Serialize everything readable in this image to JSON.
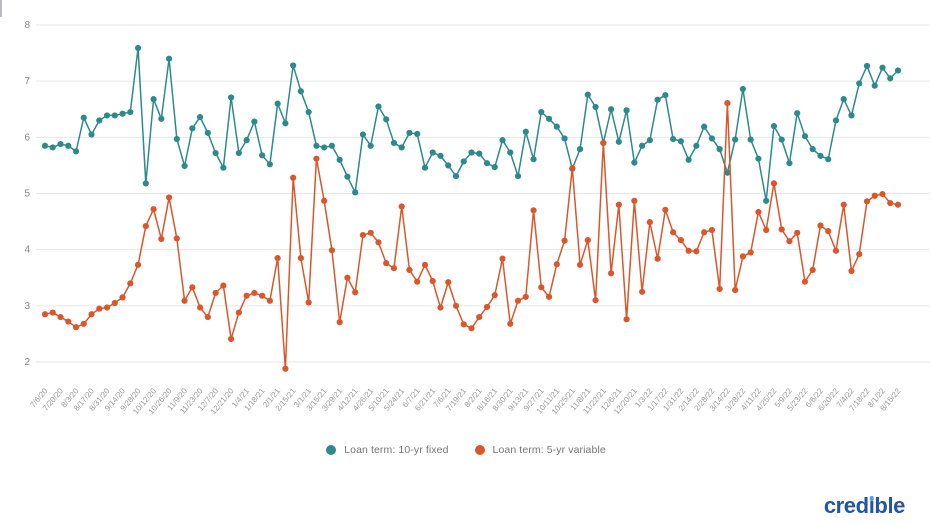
{
  "chart_data": {
    "type": "line",
    "title": "",
    "xlabel": "",
    "ylabel": "",
    "ylim": [
      2,
      8
    ],
    "y_ticks": [
      8,
      7,
      6,
      5,
      4,
      3,
      2
    ],
    "grid": true,
    "grid_color": "#e7e7e7",
    "axis_label_color": "#848484",
    "tick_label_color": "#999999",
    "legend_position": "bottom",
    "x_label_every": 2,
    "x_labels": [
      "7/6/20",
      "7/20/20",
      "8/3/20",
      "8/17/20",
      "8/31/20",
      "9/14/20",
      "9/28/20",
      "10/12/20",
      "10/26/20",
      "11/9/20",
      "11/23/20",
      "12/7/20",
      "12/21/20",
      "1/4/21",
      "1/18/21",
      "2/1/21",
      "2/15/21",
      "3/1/21",
      "3/15/21",
      "3/29/21",
      "4/12/21",
      "4/26/21",
      "5/10/21",
      "5/24/21",
      "6/7/21",
      "6/21/21",
      "7/6/21",
      "7/19/21",
      "8/2/21",
      "8/16/21",
      "8/30/21",
      "9/13/21",
      "9/27/21",
      "10/11/21",
      "10/25/21",
      "11/8/21",
      "11/22/21",
      "12/6/21",
      "12/20/21",
      "1/3/22",
      "1/17/22",
      "1/31/22",
      "2/14/22",
      "2/28/22",
      "3/14/22",
      "3/28/22",
      "4/11/22",
      "4/25/22",
      "5/9/22",
      "5/23/22",
      "6/6/22",
      "6/20/22",
      "7/4/22",
      "7/18/22",
      "8/1/22",
      "8/15/22"
    ],
    "series": [
      {
        "name": "Loan term: 10-yr fixed",
        "color": "#2d8a8c",
        "values": [
          5.85,
          5.82,
          5.88,
          5.85,
          5.75,
          6.35,
          6.05,
          6.3,
          6.39,
          6.39,
          6.42,
          6.45,
          7.59,
          5.18,
          6.68,
          6.33,
          7.4,
          5.97,
          5.49,
          6.16,
          6.36,
          6.08,
          5.72,
          5.46,
          6.71,
          5.72,
          5.95,
          6.28,
          5.68,
          5.52,
          6.6,
          6.25,
          7.28,
          6.82,
          6.45,
          5.85,
          5.82,
          5.85,
          5.6,
          5.3,
          5.02,
          6.05,
          5.85,
          6.55,
          6.32,
          5.9,
          5.82,
          6.08,
          6.06,
          5.46,
          5.73,
          5.67,
          5.5,
          5.31,
          5.57,
          5.73,
          5.71,
          5.54,
          5.47,
          5.95,
          5.73,
          5.31,
          6.1,
          5.61,
          6.45,
          6.33,
          6.19,
          5.98,
          5.44,
          5.79,
          6.76,
          6.54,
          5.9,
          6.5,
          5.92,
          6.48,
          5.55,
          5.85,
          5.95,
          6.67,
          6.75,
          5.97,
          5.93,
          5.6,
          5.85,
          6.19,
          5.98,
          5.79,
          5.37,
          5.96,
          6.86,
          5.96,
          5.62,
          4.87,
          6.2,
          5.96,
          5.54,
          6.43,
          6.02,
          5.79,
          5.67,
          5.61,
          6.3,
          6.68,
          6.39,
          6.96,
          7.27,
          6.92,
          7.24,
          7.05,
          7.19
        ]
      },
      {
        "name": "Loan term: 5-yr variable",
        "color": "#d9572b",
        "values": [
          2.85,
          2.88,
          2.8,
          2.72,
          2.62,
          2.68,
          2.85,
          2.95,
          2.97,
          3.05,
          3.15,
          3.4,
          3.73,
          4.42,
          4.72,
          4.19,
          4.93,
          4.2,
          3.09,
          3.33,
          2.97,
          2.8,
          3.23,
          3.36,
          2.41,
          2.88,
          3.18,
          3.23,
          3.18,
          3.09,
          3.85,
          1.88,
          5.28,
          3.85,
          3.06,
          5.62,
          4.87,
          3.99,
          2.71,
          3.5,
          3.24,
          4.26,
          4.3,
          4.13,
          3.76,
          3.67,
          4.77,
          3.64,
          3.43,
          3.73,
          3.44,
          2.97,
          3.42,
          3.0,
          2.67,
          2.6,
          2.8,
          2.98,
          3.19,
          3.84,
          2.68,
          3.09,
          3.16,
          4.7,
          3.33,
          3.16,
          3.74,
          4.16,
          5.45,
          3.73,
          4.17,
          3.1,
          5.9,
          3.58,
          4.8,
          2.76,
          4.87,
          3.25,
          4.49,
          3.84,
          4.71,
          4.31,
          4.17,
          3.98,
          3.97,
          4.31,
          4.35,
          3.3,
          6.61,
          3.28,
          3.88,
          3.95,
          4.67,
          4.35,
          5.18,
          4.36,
          4.15,
          4.3,
          3.43,
          3.64,
          4.43,
          4.33,
          3.98,
          4.8,
          3.62,
          3.92,
          4.86,
          4.96,
          4.99,
          4.83,
          4.8
        ]
      }
    ]
  },
  "legend": {
    "items": [
      {
        "label": "Loan term: 10-yr fixed",
        "color": "#2d8a8c"
      },
      {
        "label": "Loan term: 5-yr variable",
        "color": "#d9572b"
      }
    ]
  },
  "logo": {
    "text": "credible",
    "part1": "cred",
    "i_stem": "ı",
    "part2": "ble",
    "color": "#2454a6",
    "dot_color": "#56a0d8"
  }
}
